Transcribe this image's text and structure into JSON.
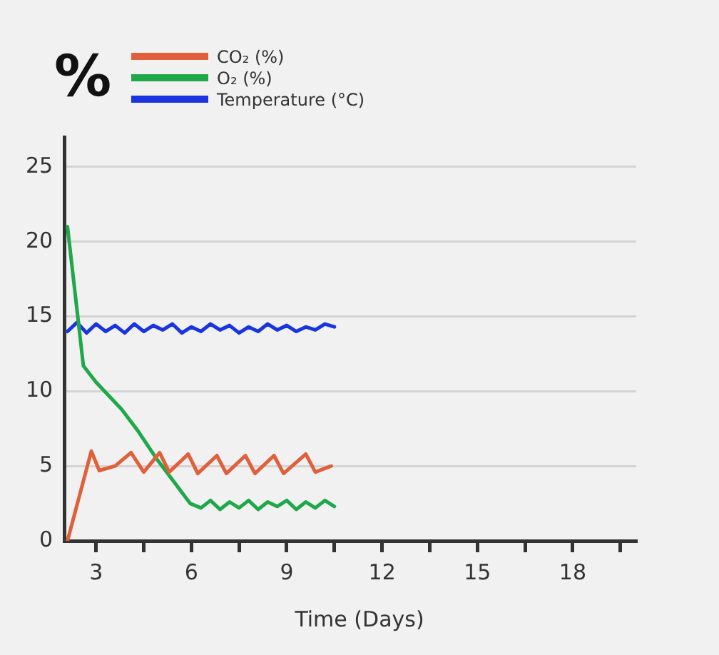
{
  "chart_data": {
    "type": "line",
    "title": "%",
    "xlabel": "Time (Days)",
    "xlim": [
      2,
      20
    ],
    "xticks": [
      3,
      {
        "value": 4.5,
        "label": null
      },
      6,
      {
        "value": 7.5,
        "label": null
      },
      9,
      {
        "value": 10.5,
        "label": null
      },
      12,
      {
        "value": 13.5,
        "label": null
      },
      15,
      {
        "value": 16.5,
        "label": null
      },
      18,
      {
        "value": 19.5,
        "label": null
      }
    ],
    "ylim": [
      0,
      27
    ],
    "yticks": [
      0,
      5,
      10,
      15,
      20,
      25
    ],
    "grid": "y",
    "legend": "top left",
    "marker": "none",
    "line_style": "solid",
    "series": [
      {
        "name": "CO₂ (%)",
        "color": "#e0603c",
        "x": [
          2.1,
          2.85,
          3.1,
          3.6,
          4.1,
          4.5,
          5.0,
          5.3,
          5.9,
          6.2,
          6.8,
          7.1,
          7.7,
          8.0,
          8.6,
          8.9,
          9.6,
          9.9,
          10.4
        ],
        "values": [
          0,
          6,
          4.7,
          5.0,
          5.9,
          4.6,
          5.9,
          4.6,
          5.8,
          4.5,
          5.7,
          4.5,
          5.7,
          4.5,
          5.7,
          4.5,
          5.8,
          4.6,
          5.0
        ]
      },
      {
        "name": "O₂ (%)",
        "color": "#1fa84a",
        "x": [
          2.1,
          2.6,
          3.0,
          3.8,
          4.3,
          4.9,
          5.5,
          5.96,
          6.3,
          6.6,
          6.9,
          7.2,
          7.5,
          7.8,
          8.1,
          8.4,
          8.7,
          9.0,
          9.3,
          9.6,
          9.9,
          10.2,
          10.5
        ],
        "values": [
          21,
          11.7,
          10.6,
          8.8,
          7.4,
          5.5,
          3.8,
          2.5,
          2.2,
          2.7,
          2.1,
          2.6,
          2.2,
          2.7,
          2.1,
          2.6,
          2.3,
          2.7,
          2.1,
          2.6,
          2.2,
          2.7,
          2.3
        ]
      },
      {
        "name": "Temperature (°C)",
        "color": "#1a35e0",
        "x": [
          2.1,
          2.4,
          2.7,
          3.0,
          3.3,
          3.6,
          3.9,
          4.2,
          4.5,
          4.8,
          5.1,
          5.4,
          5.7,
          6.0,
          6.3,
          6.6,
          6.9,
          7.2,
          7.5,
          7.8,
          8.1,
          8.4,
          8.7,
          9.0,
          9.3,
          9.6,
          9.9,
          10.2,
          10.5
        ],
        "values": [
          14.0,
          14.6,
          13.9,
          14.5,
          14.0,
          14.4,
          13.9,
          14.5,
          14.0,
          14.4,
          14.1,
          14.5,
          13.9,
          14.3,
          14.0,
          14.5,
          14.1,
          14.4,
          13.9,
          14.3,
          14.0,
          14.5,
          14.1,
          14.4,
          14.0,
          14.3,
          14.1,
          14.5,
          14.3
        ]
      }
    ]
  }
}
